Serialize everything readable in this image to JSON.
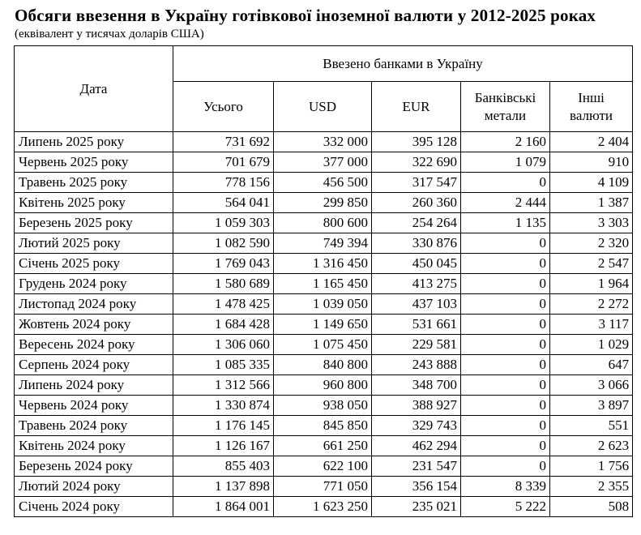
{
  "title": "Обсяги ввезення в Україну готівкової іноземної валюти у 2012-2025 роках",
  "subtitle": "(еквівалент у тисячах доларів США)",
  "table": {
    "date_header": "Дата",
    "group_header": "Ввезено банками в Україну",
    "columns": [
      "Усього",
      "USD",
      "EUR",
      "Банківські метали",
      "Інші валюти"
    ],
    "rows": [
      {
        "date": "Липень 2025 року",
        "total": "731 692",
        "usd": "332 000",
        "eur": "395 128",
        "metals": "2 160",
        "other": "2 404"
      },
      {
        "date": "Червень 2025 року",
        "total": "701 679",
        "usd": "377 000",
        "eur": "322 690",
        "metals": "1 079",
        "other": "910"
      },
      {
        "date": "Травень 2025 року",
        "total": "778 156",
        "usd": "456 500",
        "eur": "317 547",
        "metals": "0",
        "other": "4 109"
      },
      {
        "date": "Квітень 2025 року",
        "total": "564 041",
        "usd": "299 850",
        "eur": "260 360",
        "metals": "2 444",
        "other": "1 387"
      },
      {
        "date": "Березень 2025 року",
        "total": "1 059 303",
        "usd": "800 600",
        "eur": "254 264",
        "metals": "1 135",
        "other": "3 303"
      },
      {
        "date": "Лютий 2025 року",
        "total": "1 082 590",
        "usd": "749 394",
        "eur": "330 876",
        "metals": "0",
        "other": "2 320"
      },
      {
        "date": "Січень 2025 року",
        "total": "1 769 043",
        "usd": "1 316 450",
        "eur": "450 045",
        "metals": "0",
        "other": "2 547"
      },
      {
        "date": "Грудень 2024 року",
        "total": "1 580 689",
        "usd": "1 165 450",
        "eur": "413 275",
        "metals": "0",
        "other": "1 964"
      },
      {
        "date": "Листопад 2024 року",
        "total": "1 478 425",
        "usd": "1 039 050",
        "eur": "437 103",
        "metals": "0",
        "other": "2 272"
      },
      {
        "date": "Жовтень 2024 року",
        "total": "1 684 428",
        "usd": "1 149 650",
        "eur": "531 661",
        "metals": "0",
        "other": "3 117"
      },
      {
        "date": "Вересень 2024 року",
        "total": "1 306 060",
        "usd": "1 075 450",
        "eur": "229 581",
        "metals": "0",
        "other": "1 029"
      },
      {
        "date": "Серпень 2024 року",
        "total": "1 085 335",
        "usd": "840 800",
        "eur": "243 888",
        "metals": "0",
        "other": "647"
      },
      {
        "date": "Липень 2024 року",
        "total": "1 312 566",
        "usd": "960 800",
        "eur": "348 700",
        "metals": "0",
        "other": "3 066"
      },
      {
        "date": "Червень 2024 року",
        "total": "1 330 874",
        "usd": "938 050",
        "eur": "388 927",
        "metals": "0",
        "other": "3 897"
      },
      {
        "date": "Травень 2024 року",
        "total": "1 176 145",
        "usd": "845 850",
        "eur": "329 743",
        "metals": "0",
        "other": "551"
      },
      {
        "date": "Квітень 2024 року",
        "total": "1 126 167",
        "usd": "661 250",
        "eur": "462 294",
        "metals": "0",
        "other": "2 623"
      },
      {
        "date": "Березень 2024 року",
        "total": "855 403",
        "usd": "622 100",
        "eur": "231 547",
        "metals": "0",
        "other": "1 756"
      },
      {
        "date": "Лютий 2024 року",
        "total": "1 137 898",
        "usd": "771 050",
        "eur": "356 154",
        "metals": "8 339",
        "other": "2 355"
      },
      {
        "date": "Січень 2024 року",
        "total": "1 864 001",
        "usd": "1 623 250",
        "eur": "235 021",
        "metals": "5 222",
        "other": "508"
      }
    ]
  },
  "chart_data": {
    "type": "table",
    "title": "Обсяги ввезення в Україну готівкової іноземної валюти у 2012-2025 роках",
    "subtitle": "(еквівалент у тисячах доларів США)",
    "group_header": "Ввезено банками в Україну",
    "columns": [
      "Дата",
      "Усього",
      "USD",
      "EUR",
      "Банківські метали",
      "Інші валюти"
    ],
    "rows": [
      [
        "Липень 2025 року",
        731692,
        332000,
        395128,
        2160,
        2404
      ],
      [
        "Червень 2025 року",
        701679,
        377000,
        322690,
        1079,
        910
      ],
      [
        "Травень 2025 року",
        778156,
        456500,
        317547,
        0,
        4109
      ],
      [
        "Квітень 2025 року",
        564041,
        299850,
        260360,
        2444,
        1387
      ],
      [
        "Березень 2025 року",
        1059303,
        800600,
        254264,
        1135,
        3303
      ],
      [
        "Лютий 2025 року",
        1082590,
        749394,
        330876,
        0,
        2320
      ],
      [
        "Січень 2025 року",
        1769043,
        1316450,
        450045,
        0,
        2547
      ],
      [
        "Грудень 2024 року",
        1580689,
        1165450,
        413275,
        0,
        1964
      ],
      [
        "Листопад 2024 року",
        1478425,
        1039050,
        437103,
        0,
        2272
      ],
      [
        "Жовтень 2024 року",
        1684428,
        1149650,
        531661,
        0,
        3117
      ],
      [
        "Вересень 2024 року",
        1306060,
        1075450,
        229581,
        0,
        1029
      ],
      [
        "Серпень 2024 року",
        1085335,
        840800,
        243888,
        0,
        647
      ],
      [
        "Липень 2024 року",
        1312566,
        960800,
        348700,
        0,
        3066
      ],
      [
        "Червень 2024 року",
        1330874,
        938050,
        388927,
        0,
        3897
      ],
      [
        "Травень 2024 року",
        1176145,
        845850,
        329743,
        0,
        551
      ],
      [
        "Квітень 2024 року",
        1126167,
        661250,
        462294,
        0,
        2623
      ],
      [
        "Березень 2024 року",
        855403,
        622100,
        231547,
        0,
        1756
      ],
      [
        "Лютий 2024 року",
        1137898,
        771050,
        356154,
        8339,
        2355
      ],
      [
        "Січень 2024 року",
        1864001,
        1623250,
        235021,
        5222,
        508
      ]
    ]
  },
  "colors": {
    "text": "#000000",
    "background": "#ffffff",
    "border": "#000000"
  }
}
